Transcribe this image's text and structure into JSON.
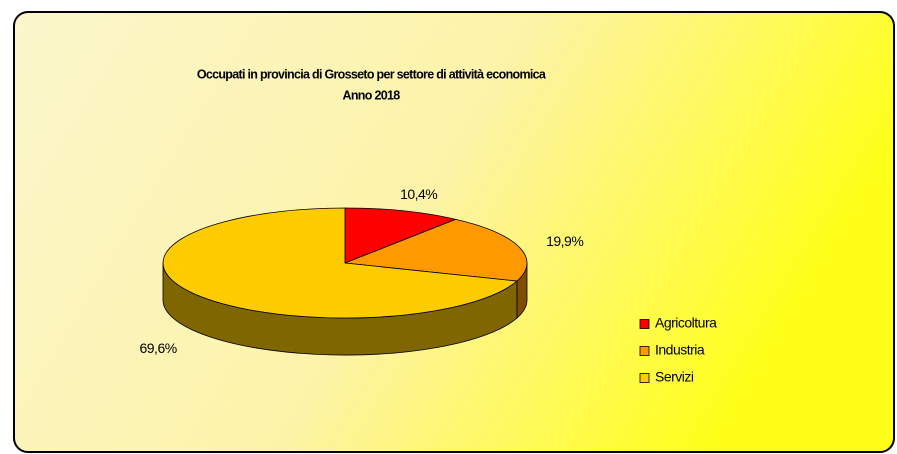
{
  "chart_data": {
    "type": "pie",
    "title": "Occupati in provincia di Grosseto per settore di attività economica",
    "subtitle": "Anno 2018",
    "categories": [
      "Agricoltura",
      "Industria",
      "Servizi"
    ],
    "values": [
      10.4,
      19.9,
      69.6
    ],
    "value_labels": [
      "10,4%",
      "19,9%",
      "69,6%"
    ],
    "colors": [
      "#ff0000",
      "#ff9900",
      "#ffcc00"
    ],
    "legend": "right"
  }
}
